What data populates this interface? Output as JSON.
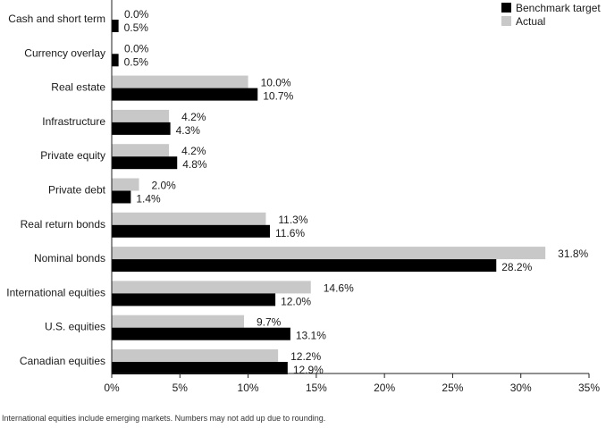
{
  "chart_data": {
    "type": "bar",
    "orientation": "horizontal",
    "categories": [
      "Cash and short term",
      "Currency overlay",
      "Real estate",
      "Infrastructure",
      "Private equity",
      "Private debt",
      "Real return bonds",
      "Nominal bonds",
      "International equities",
      "U.S. equities",
      "Canadian equities"
    ],
    "series": [
      {
        "name": "Actual",
        "color": "#c8c8c8",
        "values": [
          0.0,
          0.0,
          10.0,
          4.2,
          4.2,
          2.0,
          11.3,
          31.8,
          14.6,
          9.7,
          12.2
        ],
        "labels": [
          "0.0%",
          "0.0%",
          "10.0%",
          "4.2%",
          "4.2%",
          "2.0%",
          "11.3%",
          "31.8%",
          "14.6%",
          "9.7%",
          "12.2%"
        ]
      },
      {
        "name": "Benchmark target",
        "color": "#000000",
        "values": [
          0.5,
          0.5,
          10.7,
          4.3,
          4.8,
          1.4,
          11.6,
          28.2,
          12.0,
          13.1,
          12.9
        ],
        "labels": [
          "0.5%",
          "0.5%",
          "10.7%",
          "4.3%",
          "4.8%",
          "1.4%",
          "11.6%",
          "28.2%",
          "12.0%",
          "13.1%",
          "12.9%"
        ]
      }
    ],
    "xlim": [
      0,
      35
    ],
    "xticks": [
      0,
      5,
      10,
      15,
      20,
      25,
      30,
      35
    ],
    "xtick_labels": [
      "0%",
      "5%",
      "10%",
      "15%",
      "20%",
      "25%",
      "30%",
      "35%"
    ],
    "legend": {
      "position": "top-right",
      "entries": [
        {
          "label": "Benchmark target",
          "color": "#000000"
        },
        {
          "label": "Actual",
          "color": "#c8c8c8"
        }
      ]
    },
    "grid": false
  },
  "footnote": "International equities include emerging markets. Numbers may not add up due to rounding."
}
